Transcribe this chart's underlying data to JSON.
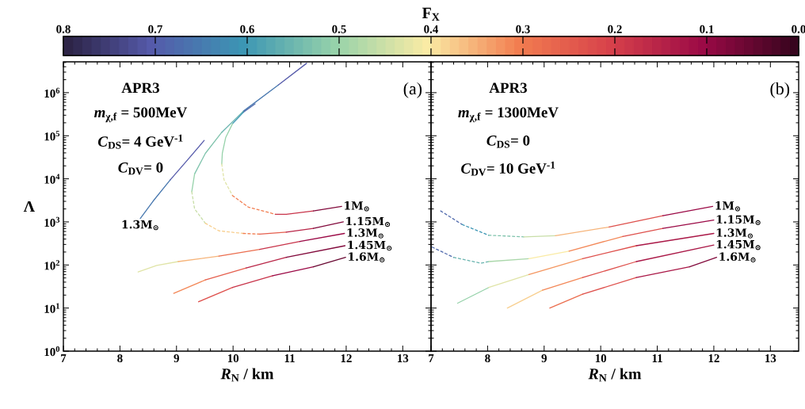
{
  "chart_data": [
    {
      "type": "line",
      "title": "(a)",
      "xlabel": "*R*$_{N}$ / km",
      "ylabel": "Λ",
      "log": "y",
      "xlim": [
        7,
        13.5
      ],
      "xticks": [
        7,
        8,
        9,
        10,
        11,
        12,
        13
      ],
      "ylim": [
        1,
        5200000
      ],
      "yticks": [
        {
          "value": 1,
          "label": "10$^{0}$"
        },
        {
          "value": 10,
          "label": "10$^{1}$"
        },
        {
          "value": 100,
          "label": "10$^{2}$"
        },
        {
          "value": 1000,
          "label": "10$^{3}$"
        },
        {
          "value": 10000,
          "label": "10$^{4}$"
        },
        {
          "value": 100000,
          "label": "10$^{5}$"
        },
        {
          "value": 1000000,
          "label": "10$^{6}$"
        }
      ],
      "clabel": "F$_{X}$",
      "clim": [
        0.8,
        0.0
      ],
      "cticks": [
        0.8,
        0.7,
        0.6,
        0.5,
        0.4,
        0.3,
        0.2,
        0.1,
        {
          "value": 0,
          "label": "0.0"
        }
      ],
      "annotations": [
        "APR3",
        "*m*$_{χ,f}$ = 500MeV",
        "*C*$_{DS}$= 4 GeV$^{-1}$",
        "*C*$_{DV}$= 0",
        {
          "text": "1.3M$_{⊙}$",
          "x": 8.36,
          "y": 1200
        },
        {
          "text": "1M$_{⊙}$",
          "x": 11.92,
          "y": 2300
        },
        {
          "text": "1.15M$_{⊙}$",
          "x": 11.95,
          "y": 1000
        },
        {
          "text": "1.3M$_{⊙}$",
          "x": 11.97,
          "y": 540
        },
        {
          "text": "1.45M$_{⊙}$",
          "x": 11.98,
          "y": 280
        },
        {
          "text": "1.6M$_{⊙}$",
          "x": 11.99,
          "y": 150
        }
      ],
      "series": [
        {
          "line_style": "solid",
          "color": "#4878af",
          "x": [
            8.36,
            8.6,
            8.89
          ],
          "values": [
            1200,
            3200,
            9500
          ]
        },
        {
          "line_style": "solid",
          "color": "#555aaa",
          "x": [
            8.89,
            9.2,
            9.49
          ],
          "values": [
            9500,
            28000,
            78000
          ]
        },
        {
          "line_style": "solid",
          "color": "#555aaa",
          "x": [
            11.3,
            10.8
          ],
          "values": [
            4800000,
            1500000
          ]
        },
        {
          "line_style": "solid",
          "color": "#4878af",
          "x": [
            10.8,
            10.18
          ],
          "values": [
            1500000,
            370000
          ]
        },
        {
          "line_style": "solid",
          "color": "#69b4af",
          "x": [
            10.18,
            9.8
          ],
          "values": [
            370000,
            120000
          ]
        },
        {
          "line_style": "solid",
          "color": "#7fc3ac",
          "x": [
            9.8,
            9.51,
            9.32
          ],
          "values": [
            120000,
            39000,
            13000
          ]
        },
        {
          "line_style": "solid",
          "color": "#96d2aa",
          "x": [
            9.32,
            9.27
          ],
          "values": [
            13000,
            5000
          ]
        },
        {
          "line_style": "dashed",
          "color": "#c8dea8",
          "x": [
            9.27,
            9.32,
            9.51
          ],
          "values": [
            5000,
            2000,
            930
          ]
        },
        {
          "line_style": "dashed",
          "color": "#f8cf8f",
          "x": [
            9.51,
            9.75,
            10.18
          ],
          "values": [
            930,
            620,
            540
          ]
        },
        {
          "line_style": "dashed",
          "color": "#f27d50",
          "x": [
            10.18,
            10.47
          ],
          "values": [
            540,
            520
          ]
        },
        {
          "line_style": "solid",
          "color": "#e55f4e",
          "x": [
            10.47,
            10.94
          ],
          "values": [
            520,
            580
          ]
        },
        {
          "line_style": "solid",
          "color": "#b92648",
          "x": [
            10.94,
            11.42
          ],
          "values": [
            580,
            710
          ]
        },
        {
          "line_style": "solid",
          "color": "#820a3c",
          "x": [
            11.42,
            11.95
          ],
          "values": [
            710,
            1000
          ]
        },
        {
          "line_style": "solid",
          "color": "#4f69ac",
          "x": [
            10.39,
            10.18
          ],
          "values": [
            550000,
            350000
          ]
        },
        {
          "line_style": "solid",
          "color": "#3c96b4",
          "x": [
            10.18,
            9.99
          ],
          "values": [
            350000,
            190000
          ]
        },
        {
          "line_style": "solid",
          "color": "#96d2aa",
          "x": [
            9.99,
            9.87,
            9.81,
            9.8
          ],
          "values": [
            190000,
            91000,
            39000,
            22000
          ]
        },
        {
          "line_style": "dashed",
          "color": "#e0e4a7",
          "x": [
            9.8,
            9.84,
            9.99
          ],
          "values": [
            22000,
            9500,
            4100
          ]
        },
        {
          "line_style": "dashed",
          "color": "#f27d50",
          "x": [
            9.99,
            10.27,
            10.75
          ],
          "values": [
            4100,
            2200,
            1500
          ]
        },
        {
          "line_style": "solid",
          "color": "#c8344a",
          "x": [
            10.75,
            10.94,
            11.42
          ],
          "values": [
            1500,
            1500,
            1800
          ]
        },
        {
          "line_style": "solid",
          "color": "#820a3c",
          "x": [
            11.42,
            11.92
          ],
          "values": [
            1800,
            2300
          ]
        },
        {
          "line_style": "solid",
          "color": "#e0e4a7",
          "x": [
            8.32,
            8.65,
            9.03
          ],
          "values": [
            69,
            98,
            120
          ]
        },
        {
          "line_style": "solid",
          "color": "#f6b47a",
          "x": [
            9.03,
            9.75
          ],
          "values": [
            120,
            160
          ]
        },
        {
          "line_style": "solid",
          "color": "#eb6e4f",
          "x": [
            9.75,
            10.47
          ],
          "values": [
            160,
            230
          ]
        },
        {
          "line_style": "solid",
          "color": "#c8344a",
          "x": [
            10.47,
            11.18
          ],
          "values": [
            230,
            350
          ]
        },
        {
          "line_style": "solid",
          "color": "#9b0a46",
          "x": [
            11.18,
            11.97
          ],
          "values": [
            350,
            540
          ]
        },
        {
          "line_style": "solid",
          "color": "#f38858",
          "x": [
            8.95,
            9.51
          ],
          "values": [
            22,
            45
          ]
        },
        {
          "line_style": "solid",
          "color": "#e55f4e",
          "x": [
            9.51,
            10.23
          ],
          "values": [
            45,
            85
          ]
        },
        {
          "line_style": "solid",
          "color": "#b92648",
          "x": [
            10.23,
            10.94
          ],
          "values": [
            85,
            150
          ]
        },
        {
          "line_style": "solid",
          "color": "#820a3c",
          "x": [
            10.94,
            11.98
          ],
          "values": [
            150,
            280
          ]
        },
        {
          "line_style": "solid",
          "color": "#de504c",
          "x": [
            9.39,
            9.99
          ],
          "values": [
            14,
            30
          ]
        },
        {
          "line_style": "solid",
          "color": "#c8344a",
          "x": [
            9.99,
            10.7
          ],
          "values": [
            30,
            56
          ]
        },
        {
          "line_style": "solid",
          "color": "#9b0a46",
          "x": [
            10.7,
            11.42
          ],
          "values": [
            56,
            91
          ]
        },
        {
          "line_style": "solid",
          "color": "#690832",
          "x": [
            11.42,
            11.99
          ],
          "values": [
            91,
            150
          ]
        }
      ]
    },
    {
      "type": "line",
      "title": "(b)",
      "xlabel": "*R*$_{N}$ / km",
      "log": "y",
      "tick_labels": "x",
      "xlim": [
        7,
        13.5
      ],
      "xticks": [
        7,
        8,
        9,
        10,
        11,
        12,
        13
      ],
      "ylim": [
        1,
        5200000
      ],
      "yticks": [
        1,
        10,
        100,
        1000,
        10000,
        100000,
        1000000
      ],
      "annotations": [
        "APR3",
        "*m*$_{χ,f}$ = 1300MeV",
        "*C*$_{DS}$= 0",
        "*C*$_{DV}$= 10 GeV$^{-1}$",
        {
          "text": "1M$_{⊙}$",
          "x": 11.98,
          "y": 2300
        },
        {
          "text": "1.15M$_{⊙}$",
          "x": 12.0,
          "y": 1100
        },
        {
          "text": "1.3M$_{⊙}$",
          "x": 12.0,
          "y": 540
        },
        {
          "text": "1.45M$_{⊙}$",
          "x": 12.0,
          "y": 290
        },
        {
          "text": "1.6M$_{⊙}$",
          "x": 12.05,
          "y": 150
        }
      ],
      "series": [
        {
          "line_style": "dashed",
          "color": "#4f69ac",
          "x": [
            7.17,
            7.55
          ],
          "values": [
            1800,
            870
          ]
        },
        {
          "line_style": "dashed",
          "color": "#3c96b4",
          "x": [
            7.55,
            8.02
          ],
          "values": [
            870,
            490
          ]
        },
        {
          "line_style": "dashed",
          "color": "#7fc3ac",
          "x": [
            8.02,
            8.64
          ],
          "values": [
            490,
            450
          ]
        },
        {
          "line_style": "solid",
          "color": "#c8dea8",
          "x": [
            8.64,
            9.2
          ],
          "values": [
            450,
            480
          ]
        },
        {
          "line_style": "solid",
          "color": "#f6b47a",
          "x": [
            9.2,
            10.15
          ],
          "values": [
            480,
            760
          ]
        },
        {
          "line_style": "solid",
          "color": "#de504c",
          "x": [
            10.15,
            11.1
          ],
          "values": [
            760,
            1400
          ]
        },
        {
          "line_style": "solid",
          "color": "#9b0a46",
          "x": [
            11.1,
            11.98
          ],
          "values": [
            1400,
            2300
          ]
        },
        {
          "line_style": "dashed",
          "color": "#4f69ac",
          "x": [
            7.02,
            7.4
          ],
          "values": [
            260,
            150
          ]
        },
        {
          "line_style": "dashed",
          "color": "#69b4af",
          "x": [
            7.4,
            7.88,
            8.02
          ],
          "values": [
            150,
            110,
            120
          ]
        },
        {
          "line_style": "solid",
          "color": "#aad7aa",
          "x": [
            8.02,
            8.73
          ],
          "values": [
            120,
            140
          ]
        },
        {
          "line_style": "solid",
          "color": "#faeba5",
          "x": [
            8.73,
            9.44
          ],
          "values": [
            140,
            210
          ]
        },
        {
          "line_style": "solid",
          "color": "#f38858",
          "x": [
            9.44,
            10.39
          ],
          "values": [
            210,
            460
          ]
        },
        {
          "line_style": "solid",
          "color": "#de504c",
          "x": [
            10.39,
            11.1
          ],
          "values": [
            460,
            710
          ]
        },
        {
          "line_style": "solid",
          "color": "#9b0a46",
          "x": [
            11.1,
            12.0
          ],
          "values": [
            710,
            1100
          ]
        },
        {
          "line_style": "solid",
          "color": "#96d2aa",
          "x": [
            7.47,
            8.02
          ],
          "values": [
            13,
            30
          ]
        },
        {
          "line_style": "solid",
          "color": "#e0e4a7",
          "x": [
            8.02,
            8.73
          ],
          "values": [
            30,
            60
          ]
        },
        {
          "line_style": "solid",
          "color": "#f49660",
          "x": [
            8.73,
            9.68
          ],
          "values": [
            60,
            140
          ]
        },
        {
          "line_style": "solid",
          "color": "#de504c",
          "x": [
            9.68,
            10.63
          ],
          "values": [
            140,
            280
          ]
        },
        {
          "line_style": "solid",
          "color": "#aa1847",
          "x": [
            10.63,
            12.0
          ],
          "values": [
            280,
            540
          ]
        },
        {
          "line_style": "solid",
          "color": "#f8cf8f",
          "x": [
            8.35,
            8.97
          ],
          "values": [
            10,
            26
          ]
        },
        {
          "line_style": "solid",
          "color": "#f38858",
          "x": [
            8.97,
            9.68
          ],
          "values": [
            26,
            51
          ]
        },
        {
          "line_style": "solid",
          "color": "#de504c",
          "x": [
            9.68,
            10.63
          ],
          "values": [
            51,
            120
          ]
        },
        {
          "line_style": "solid",
          "color": "#aa1847",
          "x": [
            10.63,
            12.0
          ],
          "values": [
            120,
            290
          ]
        },
        {
          "line_style": "solid",
          "color": "#eb6e4f",
          "x": [
            9.1,
            9.68
          ],
          "values": [
            10,
            21
          ]
        },
        {
          "line_style": "solid",
          "color": "#de504c",
          "x": [
            9.68,
            10.63
          ],
          "values": [
            21,
            51
          ]
        },
        {
          "line_style": "solid",
          "color": "#aa1847",
          "x": [
            10.63,
            11.57
          ],
          "values": [
            51,
            91
          ]
        },
        {
          "line_style": "solid",
          "color": "#820a3c",
          "x": [
            11.57,
            12.05
          ],
          "values": [
            91,
            150
          ]
        }
      ]
    }
  ]
}
